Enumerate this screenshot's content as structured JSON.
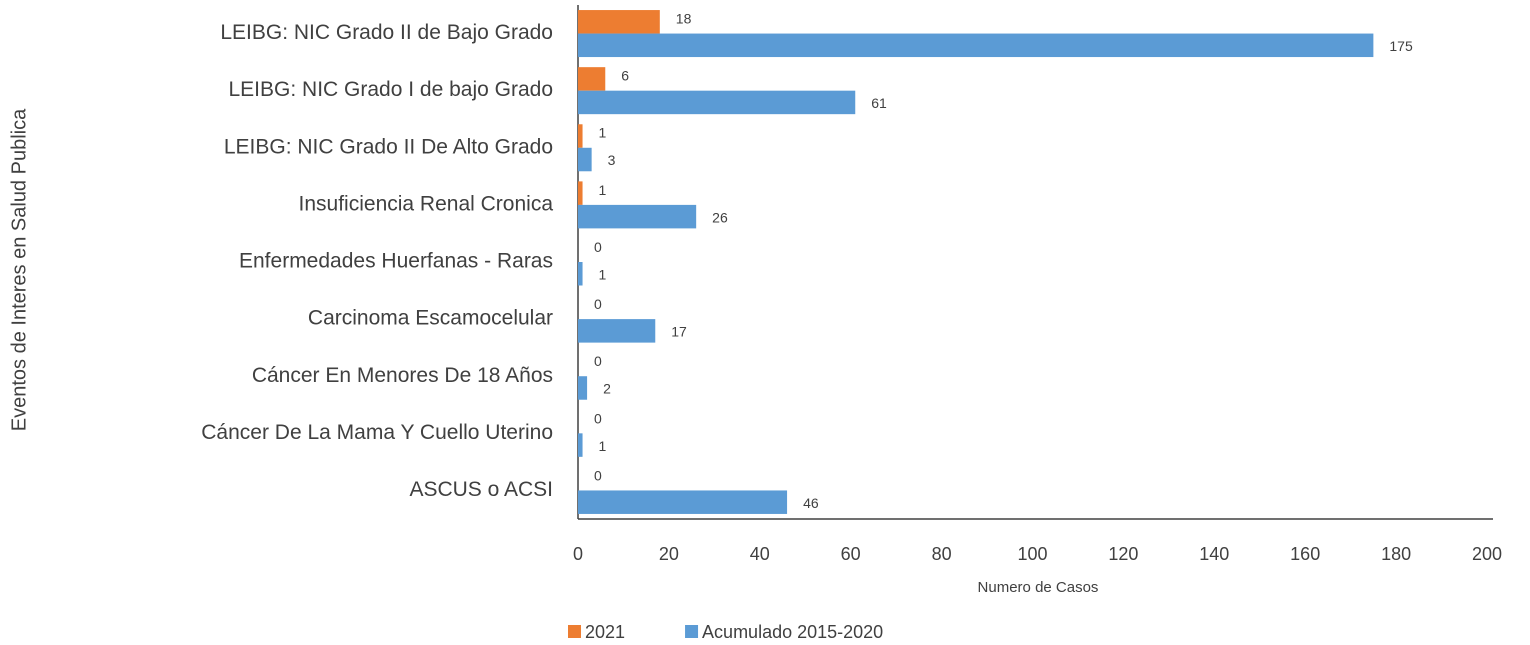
{
  "chart_data": {
    "type": "hbar",
    "x_label": "Numero de Casos",
    "y_label": "Eventos de Interes en Salud Publica",
    "categories": [
      "LEIBG: NIC Grado II de Bajo Grado",
      "LEIBG: NIC Grado I de bajo Grado",
      "LEIBG: NIC Grado II De Alto Grado",
      "Insuficiencia Renal Cronica",
      "Enfermedades Huerfanas - Raras",
      "Carcinoma Escamocelular",
      "Cáncer En Menores De 18 Años",
      "Cáncer De La Mama Y Cuello Uterino",
      "ASCUS o ACSI"
    ],
    "series": [
      {
        "name": "2021",
        "color": "#ed7d31",
        "values": [
          18,
          6,
          1,
          1,
          0,
          0,
          0,
          0,
          0
        ]
      },
      {
        "name": "Acumulado 2015-2020",
        "color": "#5b9bd5",
        "values": [
          175,
          61,
          3,
          26,
          1,
          17,
          2,
          1,
          46
        ]
      }
    ],
    "xlim": [
      0,
      200
    ],
    "xticks": [
      0,
      20,
      40,
      60,
      80,
      100,
      120,
      140,
      160,
      180,
      200
    ],
    "grid": false,
    "legend": "bottom"
  }
}
